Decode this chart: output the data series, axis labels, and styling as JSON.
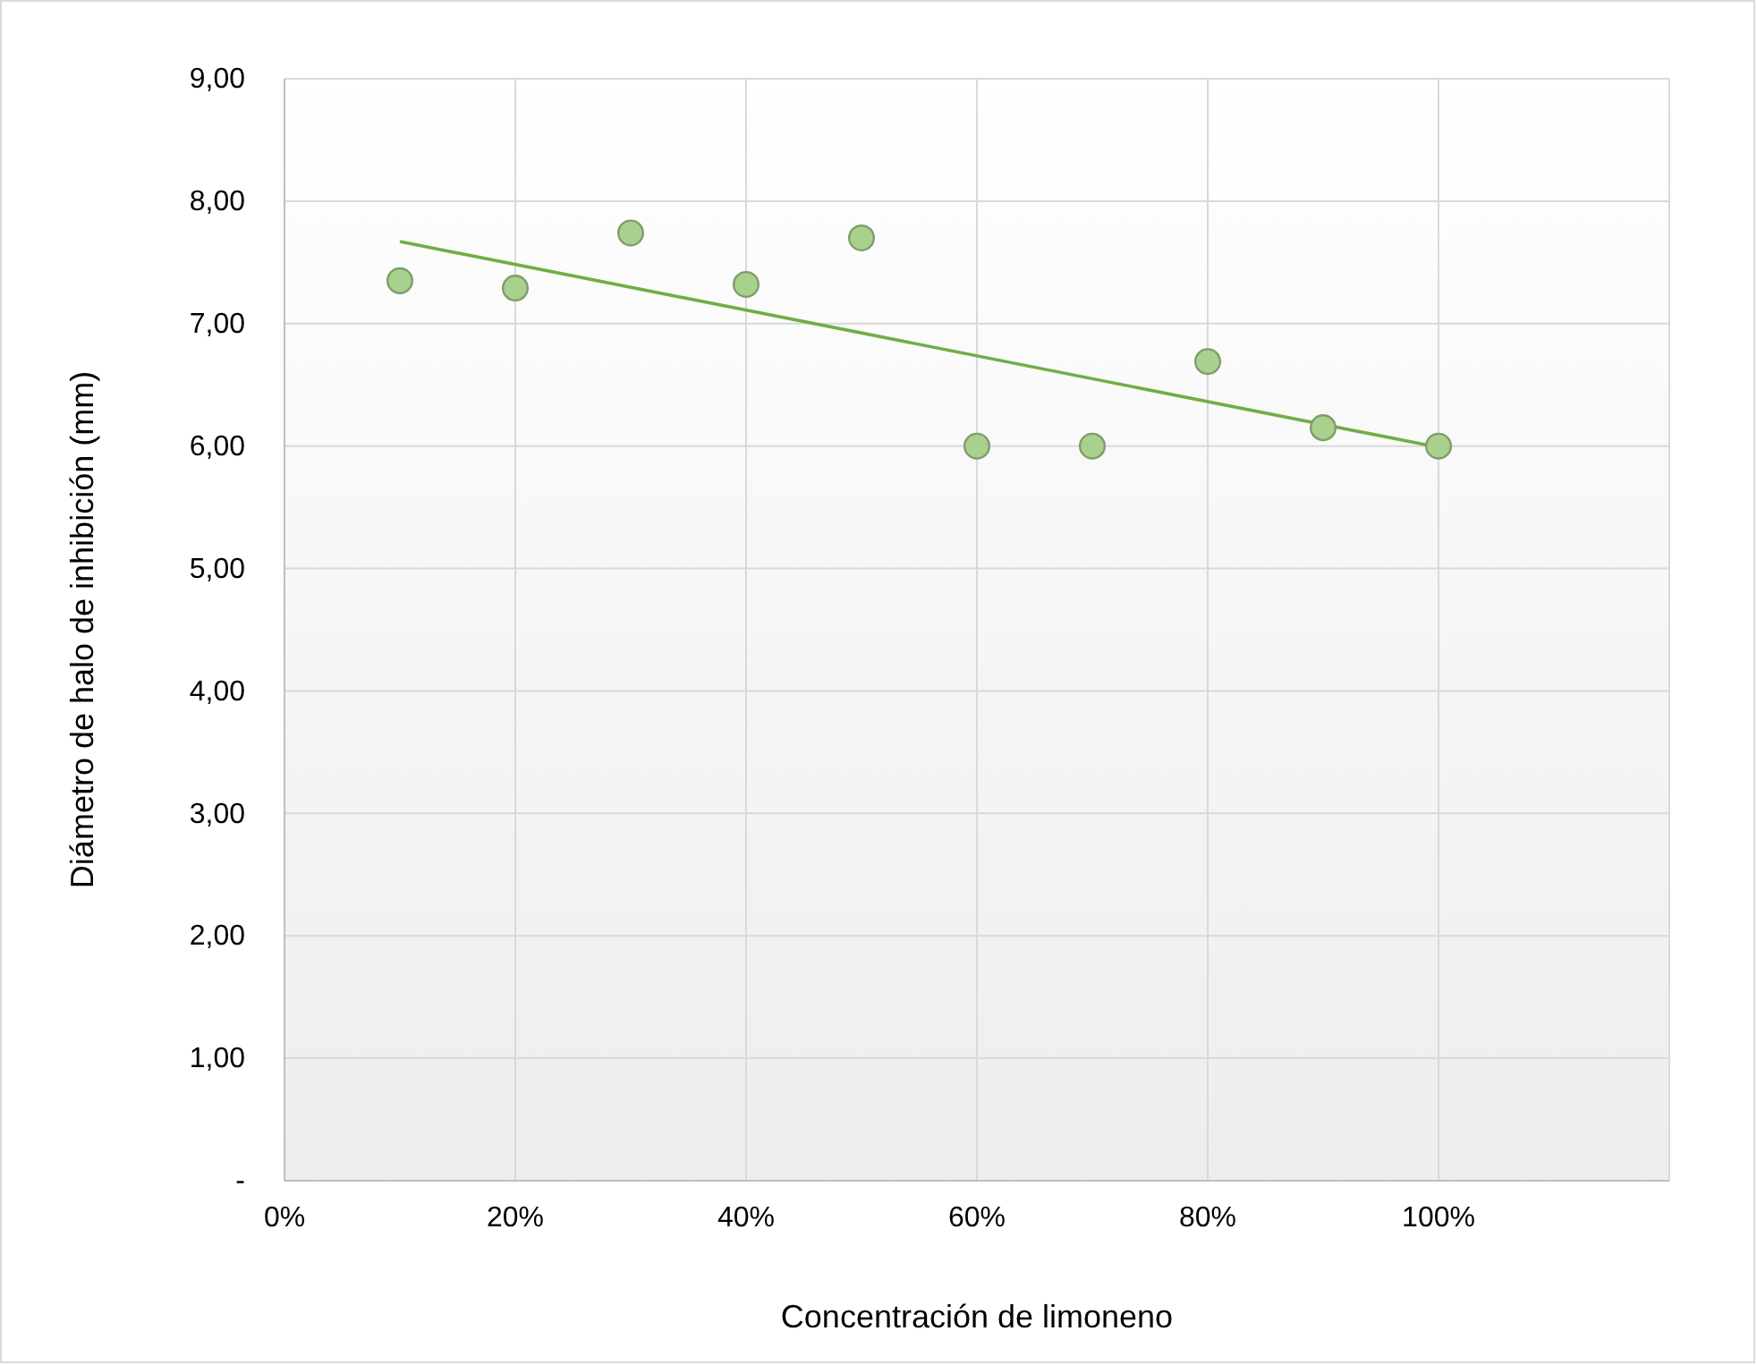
{
  "chart_data": {
    "type": "scatter",
    "xlabel": "Concentración de limoneno",
    "ylabel": "Diámetro de halo de inhibición (mm)",
    "xlim": [
      0,
      1.2
    ],
    "xticks": [
      {
        "value": 0,
        "label": "0%"
      },
      {
        "value": 0.2,
        "label": "20%"
      },
      {
        "value": 0.4,
        "label": "40%"
      },
      {
        "value": 0.6,
        "label": "60%"
      },
      {
        "value": 0.8,
        "label": "80%"
      },
      {
        "value": 1,
        "label": "100%"
      },
      {
        "value": 1.2,
        "label": null
      }
    ],
    "ylim": [
      0,
      9
    ],
    "yticks": [
      {
        "value": 0,
        "label": "-"
      },
      {
        "value": 1,
        "label": "1,00"
      },
      {
        "value": 2,
        "label": "2,00"
      },
      {
        "value": 3,
        "label": "3,00"
      },
      {
        "value": 4,
        "label": "4,00"
      },
      {
        "value": 5,
        "label": "5,00"
      },
      {
        "value": 6,
        "label": "6,00"
      },
      {
        "value": 7,
        "label": "7,00"
      },
      {
        "value": 8,
        "label": "8,00"
      },
      {
        "value": 9,
        "label": "9,00"
      }
    ],
    "grid": true,
    "marker": "circle",
    "series": [
      {
        "color": "#a9d18e",
        "x": [
          0.1,
          0.2,
          0.3,
          0.4,
          0.5,
          0.6,
          0.7,
          0.8,
          0.9,
          1.0
        ],
        "values": [
          7.35,
          7.29,
          7.74,
          7.32,
          7.7,
          6.0,
          6.0,
          6.69,
          6.15,
          6.0
        ]
      },
      {
        "type": "line",
        "marker": "none",
        "color": "#70ad47",
        "x": [
          0.1,
          1.0
        ],
        "values": [
          7.67,
          5.99
        ]
      }
    ]
  }
}
